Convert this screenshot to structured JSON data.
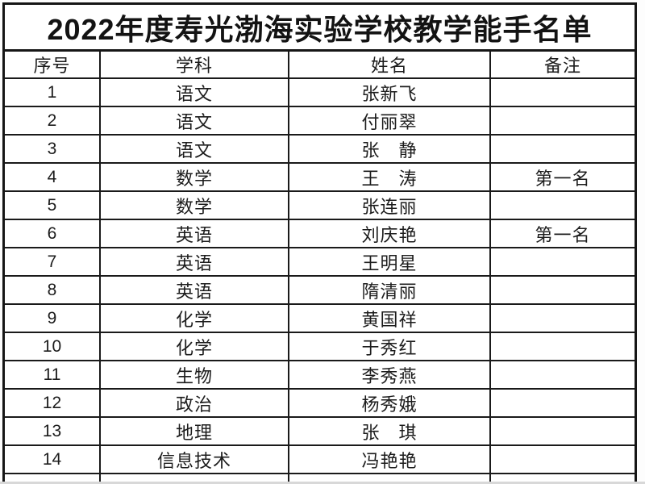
{
  "page": {
    "title": "2022年度寿光渤海实验学校教学能手名单"
  },
  "table": {
    "headers": [
      "序号",
      "学科",
      "姓名",
      "备注"
    ],
    "rows": [
      [
        "1",
        "语文",
        "张新飞",
        ""
      ],
      [
        "2",
        "语文",
        "付丽翠",
        ""
      ],
      [
        "3",
        "语文",
        "张　静",
        ""
      ],
      [
        "4",
        "数学",
        "王　涛",
        "第一名"
      ],
      [
        "5",
        "数学",
        "张连丽",
        ""
      ],
      [
        "6",
        "英语",
        "刘庆艳",
        "第一名"
      ],
      [
        "7",
        "英语",
        "王明星",
        ""
      ],
      [
        "8",
        "英语",
        "隋清丽",
        ""
      ],
      [
        "9",
        "化学",
        "黄国祥",
        ""
      ],
      [
        "10",
        "化学",
        "于秀红",
        ""
      ],
      [
        "11",
        "生物",
        "李秀燕",
        ""
      ],
      [
        "12",
        "政治",
        "杨秀娥",
        ""
      ],
      [
        "13",
        "地理",
        "张　琪",
        ""
      ],
      [
        "14",
        "信息技术",
        "冯艳艳",
        ""
      ]
    ]
  },
  "colors": {
    "background": "#ffffff",
    "border": "#1a1a1a",
    "text": "#1c1c1c",
    "photo_edge": "#d8d8d8"
  }
}
